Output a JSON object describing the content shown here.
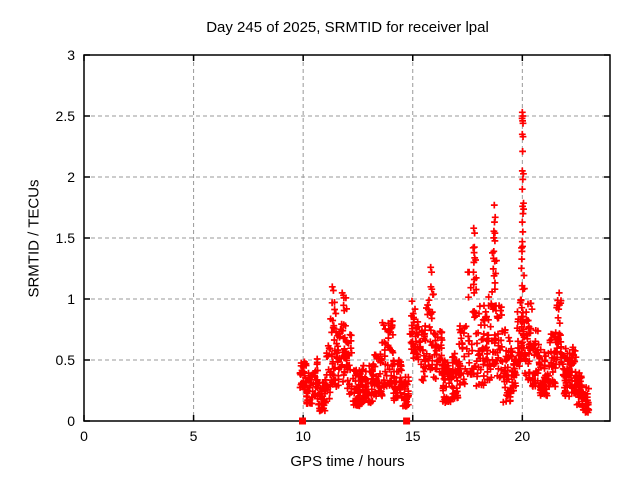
{
  "chart": {
    "title": "Day 245 of 2025, SRMTID for receiver lpal",
    "xlabel": "GPS time / hours",
    "ylabel": "SRMTID / TECUs",
    "chart_data": {
      "type": "scatter",
      "title": "Day 245 of 2025, SRMTID for receiver lpal",
      "xlabel": "GPS time / hours",
      "ylabel": "SRMTID / TECUs",
      "xlim": [
        0,
        24
      ],
      "ylim": [
        0,
        3
      ],
      "xticks": [
        0,
        5,
        10,
        15,
        20
      ],
      "yticks": [
        0,
        0.5,
        1,
        1.5,
        2,
        2.5,
        3
      ],
      "xtick_labels": [
        "0",
        "5",
        "10",
        "15",
        "20"
      ],
      "ytick_labels": [
        "0",
        "0.5",
        "1",
        "1.5",
        "2",
        "2.5",
        "3"
      ],
      "grid": true,
      "legend": "none",
      "marker": "plus",
      "marker_color": "#ff0000",
      "grid_color": "#999999",
      "border_color": "#000000",
      "background_color": "#ffffff",
      "seed": 245,
      "envelope_segments": [
        [
          9.85,
          10.15,
          0.25,
          0.5,
          30,
          1.2
        ],
        [
          10.15,
          10.45,
          0.14,
          0.42,
          30,
          1.2
        ],
        [
          10.45,
          10.7,
          0.18,
          0.52,
          25,
          1.2
        ],
        [
          10.7,
          11.05,
          0.08,
          0.34,
          35,
          1.2
        ],
        [
          11.05,
          11.25,
          0.18,
          0.62,
          20,
          1.3
        ],
        [
          11.25,
          11.5,
          0.3,
          1.1,
          28,
          1.6
        ],
        [
          11.5,
          11.68,
          0.28,
          0.85,
          20,
          1.4
        ],
        [
          11.68,
          11.98,
          0.32,
          1.06,
          30,
          1.5
        ],
        [
          11.98,
          12.25,
          0.22,
          0.72,
          25,
          1.4
        ],
        [
          12.25,
          12.7,
          0.12,
          0.42,
          50,
          1.2
        ],
        [
          12.7,
          13.2,
          0.15,
          0.46,
          50,
          1.2
        ],
        [
          13.2,
          13.6,
          0.2,
          0.56,
          40,
          1.3
        ],
        [
          13.6,
          14.1,
          0.28,
          0.83,
          45,
          1.4
        ],
        [
          14.1,
          14.55,
          0.17,
          0.5,
          45,
          1.2
        ],
        [
          14.55,
          14.85,
          0.12,
          0.38,
          28,
          1.2
        ],
        [
          14.85,
          15.25,
          0.5,
          1.0,
          35,
          1.3
        ],
        [
          15.25,
          15.6,
          0.33,
          0.78,
          30,
          1.3
        ],
        [
          15.6,
          15.95,
          0.42,
          1.05,
          25,
          1.5
        ],
        [
          15.95,
          16.35,
          0.33,
          0.75,
          35,
          1.3
        ],
        [
          16.35,
          16.75,
          0.15,
          0.5,
          40,
          1.2
        ],
        [
          16.75,
          17.1,
          0.18,
          0.56,
          35,
          1.2
        ],
        [
          17.1,
          17.45,
          0.28,
          0.8,
          30,
          1.3
        ],
        [
          17.45,
          17.9,
          0.38,
          1.45,
          35,
          1.7
        ],
        [
          17.9,
          18.35,
          0.28,
          0.95,
          40,
          1.4
        ],
        [
          18.35,
          18.6,
          0.33,
          1.1,
          25,
          1.5
        ],
        [
          18.6,
          18.85,
          0.45,
          1.6,
          30,
          1.7
        ],
        [
          18.85,
          19.1,
          0.33,
          0.95,
          25,
          1.4
        ],
        [
          19.1,
          19.45,
          0.15,
          0.75,
          35,
          1.3
        ],
        [
          19.45,
          19.75,
          0.2,
          0.6,
          30,
          1.3
        ],
        [
          19.75,
          19.95,
          0.45,
          1.0,
          20,
          1.3
        ],
        [
          19.95,
          20.1,
          0.5,
          2.3,
          33,
          2.2
        ],
        [
          20.1,
          20.45,
          0.33,
          1.0,
          35,
          1.4
        ],
        [
          20.45,
          20.8,
          0.28,
          0.75,
          35,
          1.3
        ],
        [
          20.8,
          21.2,
          0.2,
          0.6,
          40,
          1.3
        ],
        [
          21.2,
          21.55,
          0.28,
          0.75,
          35,
          1.3
        ],
        [
          21.55,
          21.85,
          0.45,
          1.0,
          30,
          1.3
        ],
        [
          21.85,
          22.2,
          0.2,
          0.6,
          40,
          1.3
        ],
        [
          22.2,
          22.45,
          0.22,
          0.62,
          30,
          1.3
        ],
        [
          22.45,
          22.75,
          0.1,
          0.4,
          35,
          1.2
        ],
        [
          22.75,
          23.05,
          0.07,
          0.28,
          30,
          1.2
        ]
      ],
      "feature_points": [
        [
          20.0,
          2.53
        ],
        [
          20.02,
          2.5
        ],
        [
          19.99,
          2.48
        ],
        [
          20.01,
          2.46
        ],
        [
          20.03,
          2.44
        ],
        [
          20.0,
          2.35
        ],
        [
          20.03,
          2.33
        ],
        [
          20.01,
          2.21
        ],
        [
          20.0,
          2.05
        ],
        [
          20.02,
          1.98
        ],
        [
          20.0,
          1.9
        ],
        [
          20.01,
          1.76
        ],
        [
          20.03,
          1.7
        ],
        [
          20.0,
          1.63
        ],
        [
          20.02,
          1.55
        ],
        [
          20.0,
          1.47
        ],
        [
          20.01,
          1.43
        ],
        [
          18.72,
          1.77
        ],
        [
          18.76,
          1.67
        ],
        [
          18.73,
          1.63
        ],
        [
          18.75,
          1.54
        ],
        [
          18.7,
          1.39
        ],
        [
          18.74,
          1.31
        ],
        [
          18.71,
          1.19
        ],
        [
          18.75,
          1.08
        ],
        [
          17.78,
          1.58
        ],
        [
          17.82,
          1.54
        ],
        [
          17.76,
          1.42
        ],
        [
          17.8,
          1.38
        ],
        [
          17.79,
          1.3
        ],
        [
          17.77,
          1.22
        ],
        [
          17.81,
          1.16
        ],
        [
          17.78,
          1.12
        ],
        [
          17.8,
          1.05
        ],
        [
          15.82,
          1.26
        ],
        [
          15.86,
          1.22
        ],
        [
          15.83,
          1.1
        ],
        [
          15.87,
          1.08
        ],
        [
          11.33,
          1.1
        ],
        [
          11.38,
          1.07
        ],
        [
          11.78,
          1.05
        ],
        [
          11.84,
          1.03
        ],
        [
          21.68,
          1.05
        ]
      ],
      "zero_square_points": [
        [
          9.97,
          0
        ],
        [
          14.72,
          0
        ]
      ]
    }
  }
}
